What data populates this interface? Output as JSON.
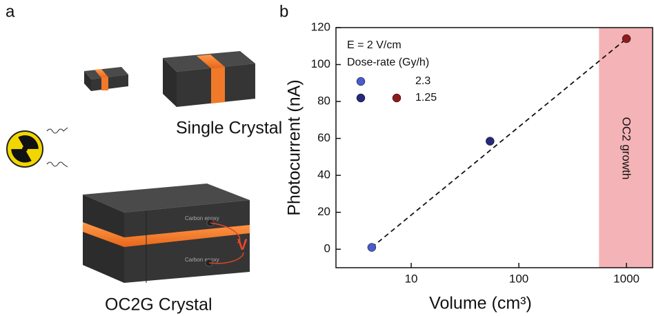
{
  "panel_a": {
    "label": "a",
    "top_caption": "Single Crystal",
    "bottom_caption": "OC2G Crystal",
    "electrode_label_1": "Carbon epoxy",
    "electrode_label_2": "Carbon epoxy",
    "voltage_label": "V"
  },
  "chart_data": {
    "type": "scatter",
    "panel_label": "b",
    "x_label": "Volume (cm³)",
    "y_label": "Photocurrent (nA)",
    "annotations": [
      "E = 2 V/cm",
      "Dose-rate (Gy/h)"
    ],
    "x_log": true,
    "xlim": [
      2,
      1750
    ],
    "xticks": [
      10,
      100,
      1000
    ],
    "ylim": [
      -10,
      120
    ],
    "yticks": [
      0,
      20,
      40,
      60,
      80,
      100,
      120
    ],
    "series": [
      {
        "name": "2.3",
        "color": "#4a5cc9",
        "x": [
          4.3
        ],
        "values": [
          1
        ]
      },
      {
        "name": "1.25",
        "color": "#262a7a",
        "colors": [
          "#262a7a",
          "#8e1c1c"
        ],
        "x": [
          54,
          1000
        ],
        "values": [
          58.5,
          114
        ]
      }
    ],
    "fit": {
      "x": [
        4.3,
        1000
      ],
      "values": [
        1,
        114
      ],
      "color": "#111"
    },
    "region": {
      "label": "OC2 growth",
      "x": [
        556,
        1750
      ],
      "color": "#f4b3b6"
    },
    "legend": "top-left"
  }
}
